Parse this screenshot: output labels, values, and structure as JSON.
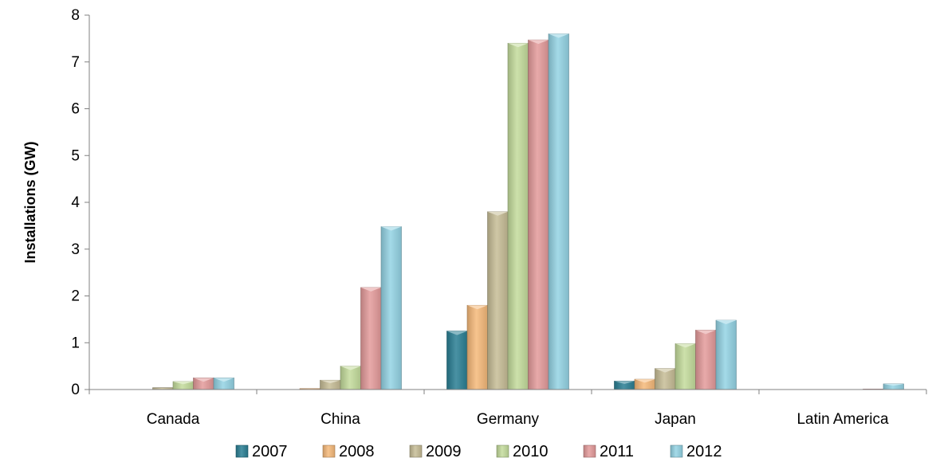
{
  "chart_data": {
    "type": "bar",
    "title": "",
    "xlabel": "",
    "ylabel": "Installations (GW)",
    "ylim": [
      0,
      8
    ],
    "yticks": [
      "0",
      "1",
      "2",
      "3",
      "4",
      "5",
      "6",
      "7",
      "8"
    ],
    "grid": false,
    "legend_position": "bottom",
    "categories": [
      "Canada",
      "China",
      "Germany",
      "Japan",
      "Latin America"
    ],
    "series": [
      {
        "name": "2007",
        "color": "#2a7f94",
        "values": [
          0,
          0,
          1.25,
          0.18,
          0
        ]
      },
      {
        "name": "2008",
        "color": "#f6b97a",
        "values": [
          0,
          0.02,
          1.8,
          0.22,
          0
        ]
      },
      {
        "name": "2009",
        "color": "#c7bd96",
        "values": [
          0.04,
          0.2,
          3.8,
          0.45,
          0
        ]
      },
      {
        "name": "2010",
        "color": "#c4dc9c",
        "values": [
          0.17,
          0.5,
          7.4,
          0.98,
          0
        ]
      },
      {
        "name": "2011",
        "color": "#e49b9b",
        "values": [
          0.25,
          2.18,
          7.47,
          1.27,
          0.01
        ]
      },
      {
        "name": "2012",
        "color": "#94d3e4",
        "values": [
          0.25,
          3.48,
          7.6,
          1.48,
          0.12
        ]
      }
    ]
  }
}
